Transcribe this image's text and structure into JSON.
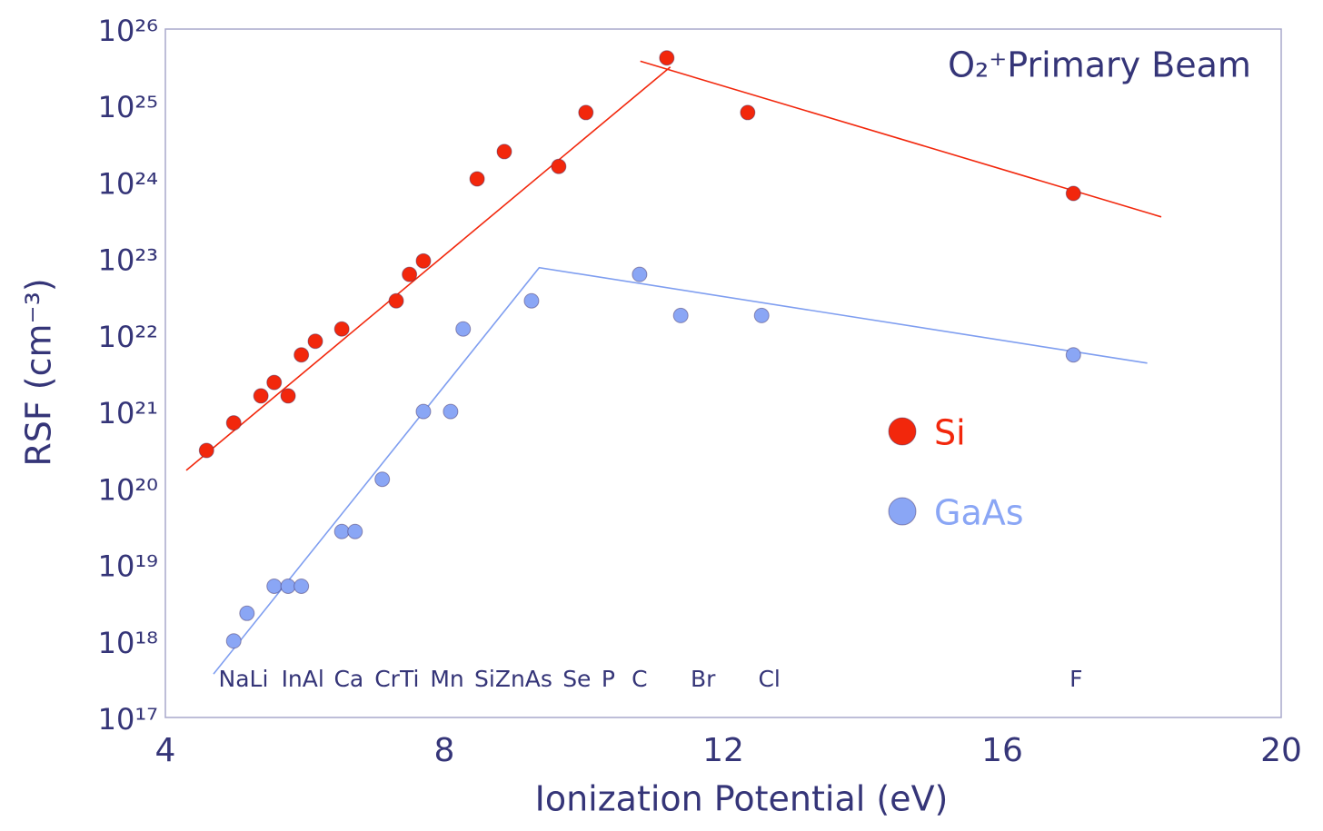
{
  "chart_data": {
    "type": "scatter",
    "annotation": "O₂⁺Primary Beam",
    "x_label": "Ionization Potential (eV)",
    "y_label": "RSF (cm⁻³)",
    "xlim": [
      4,
      20
    ],
    "xticks": [
      4,
      8,
      12,
      16,
      20
    ],
    "ylim": [
      1e+17,
      1e+26
    ],
    "y_scale": "log",
    "yticks": [
      {
        "value": 1e+17,
        "label": "10¹⁷"
      },
      {
        "value": 1e+18,
        "label": "10¹⁸"
      },
      {
        "value": 1e+19,
        "label": "10¹⁹"
      },
      {
        "value": 1e+20,
        "label": "10²⁰"
      },
      {
        "value": 1e+21,
        "label": "10²¹"
      },
      {
        "value": 1e+22,
        "label": "10²²"
      },
      {
        "value": 1e+23,
        "label": "10²³"
      },
      {
        "value": 1e+24,
        "label": "10²⁴"
      },
      {
        "value": 1e+25,
        "label": "10²⁵"
      },
      {
        "value": 1e+26,
        "label": "10²⁶"
      }
    ],
    "grid": false,
    "legend": "right",
    "series": [
      {
        "name": "Si",
        "color": "#f2270c",
        "x": [
          4.59,
          4.98,
          5.37,
          5.56,
          5.76,
          5.95,
          6.15,
          6.53,
          7.31,
          7.5,
          7.7,
          8.47,
          8.86,
          9.64,
          10.03,
          11.19,
          12.35,
          17.02
        ],
        "values": [
          3.1e+20,
          7.1e+20,
          1.6e+21,
          2.4e+21,
          1.6e+21,
          5.5e+21,
          8.3e+21,
          1.2e+22,
          2.8e+22,
          6.2e+22,
          9.3e+22,
          1.1e+24,
          2.5e+24,
          1.6e+24,
          8.1e+24,
          4.2e+25,
          8.1e+24,
          7.1e+23
        ]
      },
      {
        "name": "GaAs",
        "color": "#8aa6f5",
        "x": [
          4.98,
          5.17,
          5.56,
          5.76,
          5.95,
          6.53,
          6.72,
          7.11,
          7.7,
          8.09,
          8.27,
          9.25,
          10.8,
          11.39,
          12.55,
          17.02
        ],
        "values": [
          1e+18,
          2.3e+18,
          5.2e+18,
          5.2e+18,
          5.2e+18,
          2.7e+19,
          2.7e+19,
          1.3e+20,
          1e+21,
          1e+21,
          1.2e+22,
          2.8e+22,
          6.2e+22,
          1.8e+22,
          1.8e+22,
          5.5e+21
        ]
      }
    ],
    "trend_lines": [
      {
        "color": "#f2270c",
        "x": [
          4.3,
          11.24
        ],
        "values": [
          1.7e+20,
          3.2e+25
        ]
      },
      {
        "color": "#f2270c",
        "x": [
          10.81,
          18.28
        ],
        "values": [
          3.8e+25,
          3.5e+23
        ]
      },
      {
        "color": "#7f9ef0",
        "x": [
          4.69,
          9.36,
          18.08
        ],
        "values": [
          3.7e+17,
          7.6e+22,
          4.3e+21
        ]
      }
    ],
    "element_labels": [
      {
        "text": "NaLi",
        "x": 5.12
      },
      {
        "text": "InAl",
        "x": 5.97
      },
      {
        "text": "Ca",
        "x": 6.63
      },
      {
        "text": "CrTi",
        "x": 7.32
      },
      {
        "text": "Mn",
        "x": 8.04
      },
      {
        "text": "SiZnAs",
        "x": 8.99
      },
      {
        "text": "Se",
        "x": 9.9
      },
      {
        "text": "P",
        "x": 10.35
      },
      {
        "text": "C",
        "x": 10.8
      },
      {
        "text": "Br",
        "x": 11.71
      },
      {
        "text": "Cl",
        "x": 12.66
      },
      {
        "text": "F",
        "x": 17.06
      }
    ]
  }
}
